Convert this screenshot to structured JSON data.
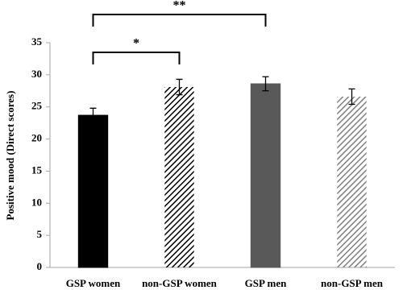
{
  "chart_data": {
    "type": "bar",
    "y_label": "Positive mood (Direct scores)",
    "categories": [
      "GSP women",
      "non-GSP women",
      "GSP men",
      "non-GSP men"
    ],
    "values": [
      23.7,
      28.1,
      28.6,
      26.6
    ],
    "errors": [
      1.1,
      1.2,
      1.1,
      1.2
    ],
    "colors": [
      "#000000",
      "#000000",
      "#595959",
      "#7f7f7f"
    ],
    "fills": [
      "solid",
      "hatch",
      "solid",
      "hatch"
    ],
    "ylim": [
      0,
      35
    ],
    "yticks": [
      0,
      5,
      10,
      15,
      20,
      25,
      30,
      35
    ],
    "grid": false,
    "annotations": [
      {
        "text": "*",
        "from": "GSP women",
        "to": "non-GSP women"
      },
      {
        "text": "**",
        "from": "GSP women",
        "to": "GSP men"
      }
    ]
  }
}
